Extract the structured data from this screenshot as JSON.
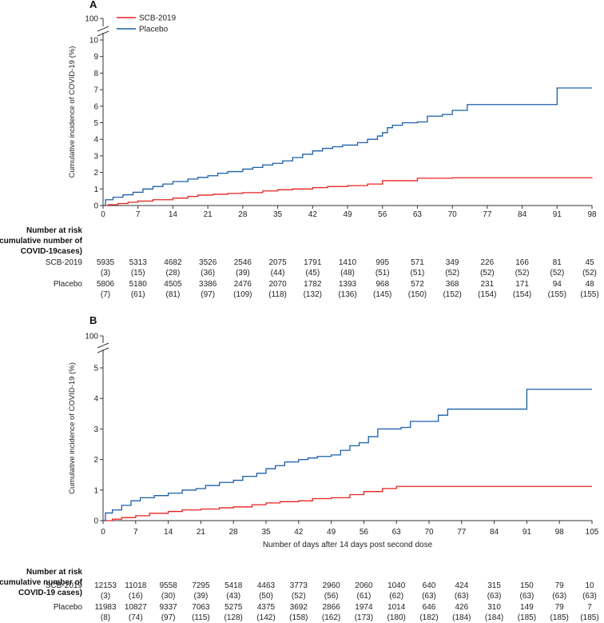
{
  "colors": {
    "scb": "#e8231f",
    "placebo": "#1c5fa8",
    "axis": "#333333"
  },
  "legend": {
    "scb_label": "SCB-2019",
    "placebo_label": "Placebo"
  },
  "chart_data": [
    {
      "panel_label": "A",
      "type": "line",
      "title": "",
      "ylabel": "Cumulative incidence of COVID-19 (%)",
      "xlabel": "",
      "ylim": [
        0,
        10
      ],
      "y_break_top_label": "100",
      "y_ticks": [
        0,
        1,
        2,
        3,
        4,
        5,
        6,
        7,
        8,
        9,
        10
      ],
      "x_ticks": [
        0,
        7,
        14,
        21,
        28,
        35,
        42,
        49,
        56,
        63,
        70,
        77,
        84,
        91,
        98
      ],
      "xlim": [
        0,
        98
      ],
      "series": [
        {
          "name": "SCB-2019",
          "key": "scb",
          "points": [
            [
              0,
              0
            ],
            [
              1,
              0.05
            ],
            [
              3,
              0.12
            ],
            [
              5,
              0.2
            ],
            [
              7,
              0.27
            ],
            [
              10,
              0.35
            ],
            [
              14,
              0.45
            ],
            [
              17,
              0.55
            ],
            [
              19,
              0.63
            ],
            [
              22,
              0.68
            ],
            [
              25,
              0.73
            ],
            [
              28,
              0.78
            ],
            [
              32,
              0.88
            ],
            [
              35,
              0.95
            ],
            [
              38,
              1.0
            ],
            [
              42,
              1.08
            ],
            [
              45,
              1.15
            ],
            [
              49,
              1.2
            ],
            [
              53,
              1.3
            ],
            [
              56,
              1.5
            ],
            [
              63,
              1.65
            ],
            [
              70,
              1.68
            ],
            [
              98,
              1.7
            ]
          ]
        },
        {
          "name": "Placebo",
          "key": "placebo",
          "points": [
            [
              0,
              0
            ],
            [
              0.5,
              0.35
            ],
            [
              2,
              0.5
            ],
            [
              4,
              0.65
            ],
            [
              6,
              0.8
            ],
            [
              8,
              1.0
            ],
            [
              10,
              1.15
            ],
            [
              12,
              1.3
            ],
            [
              14,
              1.45
            ],
            [
              17,
              1.6
            ],
            [
              19,
              1.7
            ],
            [
              21,
              1.8
            ],
            [
              23,
              1.95
            ],
            [
              25,
              2.05
            ],
            [
              28,
              2.2
            ],
            [
              30,
              2.3
            ],
            [
              32,
              2.45
            ],
            [
              34,
              2.55
            ],
            [
              36,
              2.7
            ],
            [
              38,
              2.9
            ],
            [
              40,
              3.1
            ],
            [
              42,
              3.3
            ],
            [
              44,
              3.45
            ],
            [
              46,
              3.55
            ],
            [
              48,
              3.65
            ],
            [
              51,
              3.8
            ],
            [
              53,
              4.0
            ],
            [
              55,
              4.2
            ],
            [
              56,
              4.4
            ],
            [
              57,
              4.7
            ],
            [
              58,
              4.85
            ],
            [
              60,
              5.0
            ],
            [
              63,
              5.05
            ],
            [
              65,
              5.4
            ],
            [
              68,
              5.5
            ],
            [
              70,
              5.75
            ],
            [
              73,
              6.1
            ],
            [
              84,
              6.1
            ],
            [
              91,
              7.1
            ],
            [
              98,
              7.1
            ]
          ]
        }
      ],
      "risk_table": {
        "header": [
          "Number at risk",
          "(cumulative number of",
          "COVID-19cases)"
        ],
        "rows": [
          {
            "label": "SCB-2019",
            "at_risk": [
              "5935",
              "5313",
              "4682",
              "3526",
              "2546",
              "2075",
              "1791",
              "1410",
              "995",
              "571",
              "349",
              "226",
              "166",
              "81",
              "45"
            ],
            "cases": [
              "(3)",
              "(15)",
              "(28)",
              "(36)",
              "(39)",
              "(44)",
              "(45)",
              "(48)",
              "(51)",
              "(51)",
              "(52)",
              "(52)",
              "(52)",
              "(52)",
              "(52)"
            ]
          },
          {
            "label": "Placebo",
            "at_risk": [
              "5806",
              "5180",
              "4505",
              "3386",
              "2476",
              "2070",
              "1782",
              "1393",
              "968",
              "572",
              "368",
              "231",
              "171",
              "94",
              "48"
            ],
            "cases": [
              "(7)",
              "(61)",
              "(81)",
              "(97)",
              "(109)",
              "(118)",
              "(132)",
              "(136)",
              "(145)",
              "(150)",
              "(152)",
              "(154)",
              "(154)",
              "(155)",
              "(155)"
            ]
          }
        ]
      }
    },
    {
      "panel_label": "B",
      "type": "line",
      "title": "",
      "ylabel": "Cumulative incidence of COVID-19 (%)",
      "xlabel": "Number of days after 14 days post second dose",
      "ylim": [
        0,
        5
      ],
      "y_break_top_label": "100",
      "y_ticks": [
        0,
        1,
        2,
        3,
        4,
        5
      ],
      "x_ticks": [
        0,
        7,
        14,
        21,
        28,
        35,
        42,
        49,
        56,
        63,
        70,
        77,
        84,
        91,
        98,
        105
      ],
      "xlim": [
        0,
        105
      ],
      "series": [
        {
          "name": "SCB-2019",
          "key": "scb",
          "points": [
            [
              0,
              0
            ],
            [
              2,
              0.05
            ],
            [
              4,
              0.1
            ],
            [
              7,
              0.16
            ],
            [
              10,
              0.24
            ],
            [
              14,
              0.3
            ],
            [
              17,
              0.35
            ],
            [
              21,
              0.38
            ],
            [
              25,
              0.42
            ],
            [
              28,
              0.45
            ],
            [
              32,
              0.52
            ],
            [
              35,
              0.58
            ],
            [
              38,
              0.62
            ],
            [
              42,
              0.65
            ],
            [
              45,
              0.72
            ],
            [
              49,
              0.75
            ],
            [
              53,
              0.85
            ],
            [
              56,
              0.95
            ],
            [
              60,
              1.05
            ],
            [
              63,
              1.12
            ],
            [
              105,
              1.12
            ]
          ]
        },
        {
          "name": "Placebo",
          "key": "placebo",
          "points": [
            [
              0,
              0
            ],
            [
              0.5,
              0.25
            ],
            [
              2,
              0.35
            ],
            [
              4,
              0.5
            ],
            [
              6,
              0.65
            ],
            [
              8,
              0.75
            ],
            [
              11,
              0.82
            ],
            [
              14,
              0.9
            ],
            [
              17,
              1.0
            ],
            [
              20,
              1.05
            ],
            [
              22,
              1.15
            ],
            [
              25,
              1.25
            ],
            [
              28,
              1.32
            ],
            [
              30,
              1.45
            ],
            [
              33,
              1.55
            ],
            [
              35,
              1.7
            ],
            [
              37,
              1.8
            ],
            [
              39,
              1.92
            ],
            [
              42,
              2.0
            ],
            [
              44,
              2.05
            ],
            [
              46,
              2.1
            ],
            [
              49,
              2.15
            ],
            [
              51,
              2.3
            ],
            [
              53,
              2.45
            ],
            [
              55,
              2.55
            ],
            [
              57,
              2.75
            ],
            [
              59,
              3.0
            ],
            [
              64,
              3.05
            ],
            [
              66,
              3.25
            ],
            [
              72,
              3.45
            ],
            [
              74,
              3.65
            ],
            [
              91,
              3.65
            ],
            [
              91,
              4.3
            ],
            [
              105,
              4.3
            ]
          ]
        }
      ],
      "risk_table": {
        "header": [
          "Number at risk",
          "(cumulative number of",
          "COVID-19 cases)"
        ],
        "rows": [
          {
            "label": "SCB-2019",
            "at_risk": [
              "12153",
              "11018",
              "9558",
              "7295",
              "5418",
              "4463",
              "3773",
              "2960",
              "2060",
              "1040",
              "640",
              "424",
              "315",
              "150",
              "79",
              "10"
            ],
            "cases": [
              "(3)",
              "(16)",
              "(30)",
              "(39)",
              "(43)",
              "(50)",
              "(52)",
              "(56)",
              "(61)",
              "(62)",
              "(63)",
              "(63)",
              "(63)",
              "(63)",
              "(63)",
              "(63)"
            ]
          },
          {
            "label": "Placebo",
            "at_risk": [
              "11983",
              "10827",
              "9337",
              "7063",
              "5275",
              "4375",
              "3692",
              "2866",
              "1974",
              "1014",
              "646",
              "426",
              "310",
              "149",
              "79",
              "7"
            ],
            "cases": [
              "(8)",
              "(74)",
              "(97)",
              "(115)",
              "(128)",
              "(142)",
              "(158)",
              "(162)",
              "(173)",
              "(180)",
              "(182)",
              "(184)",
              "(184)",
              "(185)",
              "(185)",
              "(185)"
            ]
          }
        ]
      }
    }
  ]
}
